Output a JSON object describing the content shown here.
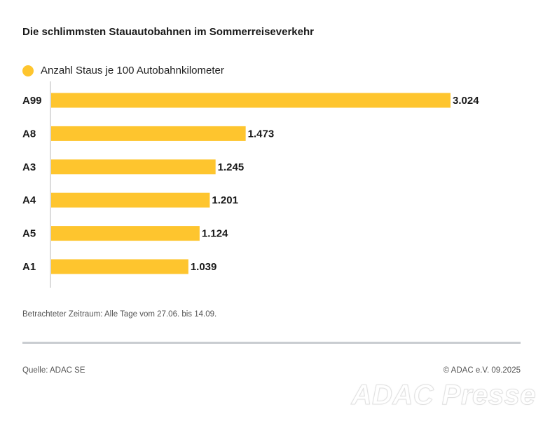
{
  "colors": {
    "bar": "#FEC52E",
    "axis": "#d0d0d0",
    "text": "#1a1a1a"
  },
  "header": {
    "title": "Die schlimmsten Stauautobahnen im Sommerreiseverkehr"
  },
  "legend": {
    "label": "Anzahl Staus je 100 Autobahnkilometer"
  },
  "chart_data": {
    "type": "bar",
    "orientation": "horizontal",
    "title": "Die schlimmsten Stauautobahnen im Sommerreiseverkehr",
    "categories": [
      "A99",
      "A8",
      "A3",
      "A4",
      "A5",
      "A1"
    ],
    "series": [
      {
        "name": "Anzahl Staus je 100 Autobahnkilometer",
        "values": [
          3.024,
          1.473,
          1.245,
          1.201,
          1.124,
          1.039
        ]
      }
    ],
    "data_labels": [
      "3.024",
      "1.473",
      "1.245",
      "1.201",
      "1.124",
      "1.039"
    ],
    "xlim": [
      0,
      3.2
    ],
    "grid": false,
    "legend_position": "top-left"
  },
  "footer": {
    "note": "Betrachteter Zeitraum: Alle Tage vom 27.06. bis 14.09.",
    "source": "Quelle: ADAC SE",
    "copyright": "© ADAC e.V. 09.2025",
    "watermark": "ADAC Presse"
  }
}
